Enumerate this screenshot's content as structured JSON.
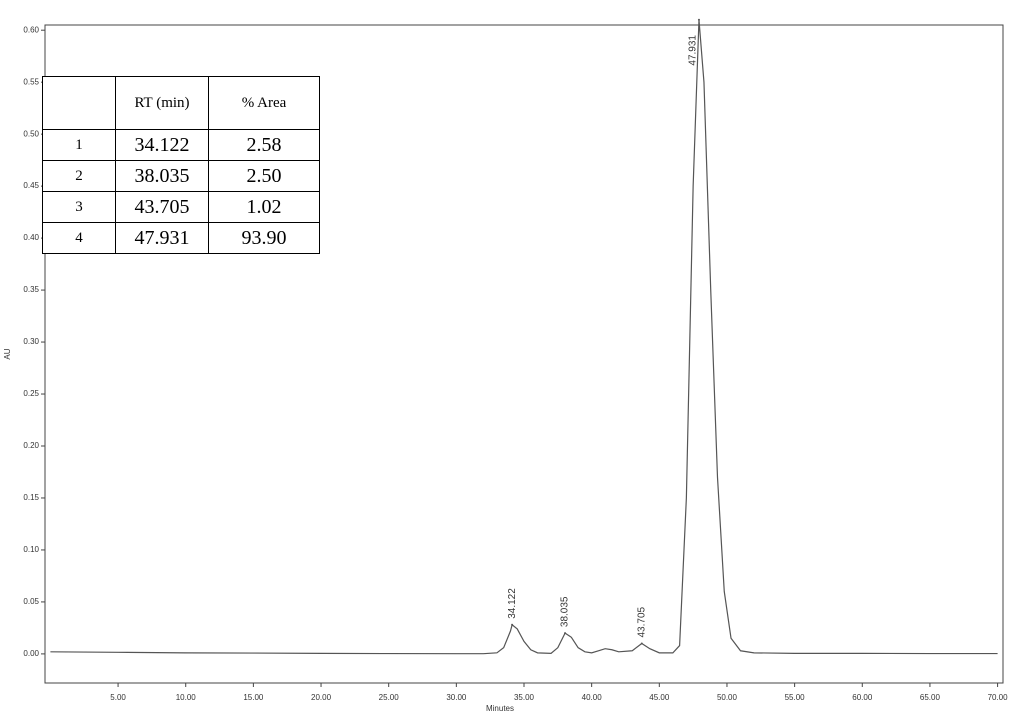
{
  "chart_data": {
    "type": "line",
    "xlabel": "Minutes",
    "ylabel": "AU",
    "xlim": [
      -0.4,
      70.4
    ],
    "ylim": [
      -0.028,
      0.605
    ],
    "xticks": [
      {
        "value": 5,
        "label": "5.00"
      },
      {
        "value": 10,
        "label": "10.00"
      },
      {
        "value": 15,
        "label": "15.00"
      },
      {
        "value": 20,
        "label": "20.00"
      },
      {
        "value": 25,
        "label": "25.00"
      },
      {
        "value": 30,
        "label": "30.00"
      },
      {
        "value": 35,
        "label": "35.00"
      },
      {
        "value": 40,
        "label": "40.00"
      },
      {
        "value": 45,
        "label": "45.00"
      },
      {
        "value": 50,
        "label": "50.00"
      },
      {
        "value": 55,
        "label": "55.00"
      },
      {
        "value": 60,
        "label": "60.00"
      },
      {
        "value": 65,
        "label": "65.00"
      },
      {
        "value": 70,
        "label": "70.00"
      }
    ],
    "yticks": [
      {
        "value": 0,
        "label": "0.00"
      },
      {
        "value": 0.05,
        "label": "0.05"
      },
      {
        "value": 0.1,
        "label": "0.10"
      },
      {
        "value": 0.15,
        "label": "0.15"
      },
      {
        "value": 0.2,
        "label": "0.20"
      },
      {
        "value": 0.25,
        "label": "0.25"
      },
      {
        "value": 0.3,
        "label": "0.30"
      },
      {
        "value": 0.35,
        "label": "0.35"
      },
      {
        "value": 0.4,
        "label": "0.40"
      },
      {
        "value": 0.45,
        "label": "0.45"
      },
      {
        "value": 0.5,
        "label": "0.50"
      },
      {
        "value": 0.55,
        "label": "0.55"
      },
      {
        "value": 0.6,
        "label": "0.60"
      }
    ],
    "color": "#555555",
    "x": [
      0,
      5,
      10,
      15,
      20,
      25,
      30,
      32,
      33,
      33.5,
      34,
      34.122,
      34.5,
      35,
      35.5,
      36,
      37,
      37.5,
      38.035,
      38.5,
      39,
      39.5,
      40,
      40.5,
      41,
      41.5,
      42,
      43,
      43.705,
      44.3,
      45,
      46,
      46.5,
      47,
      47.5,
      47.931,
      48.3,
      48.8,
      49.3,
      49.8,
      50.3,
      51,
      52,
      55,
      60,
      65,
      70
    ],
    "values": [
      0.002,
      0.0015,
      0.001,
      0.0008,
      0.0005,
      0.0003,
      0.0002,
      0.0002,
      0.001,
      0.006,
      0.022,
      0.028,
      0.024,
      0.012,
      0.004,
      0.001,
      0.0005,
      0.006,
      0.02,
      0.016,
      0.006,
      0.002,
      0.001,
      0.003,
      0.005,
      0.004,
      0.002,
      0.003,
      0.01,
      0.005,
      0.001,
      0.001,
      0.008,
      0.15,
      0.45,
      0.61,
      0.55,
      0.35,
      0.17,
      0.06,
      0.015,
      0.003,
      0.001,
      0.0005,
      0.0005,
      0.0003,
      0.0003
    ],
    "peaks": [
      {
        "x": 34.122,
        "y": 0.028
      },
      {
        "x": 38.035,
        "y": 0.02
      },
      {
        "x": 43.705,
        "y": 0.01
      },
      {
        "x": 47.931,
        "y": 0.61
      }
    ],
    "table": {
      "columns": [
        "RT (min)",
        "% Area"
      ],
      "rows": [
        [
          "1",
          "34.122",
          "2.58"
        ],
        [
          "2",
          "38.035",
          "2.50"
        ],
        [
          "3",
          "43.705",
          "1.02"
        ],
        [
          "4",
          "47.931",
          "93.90"
        ]
      ]
    }
  }
}
